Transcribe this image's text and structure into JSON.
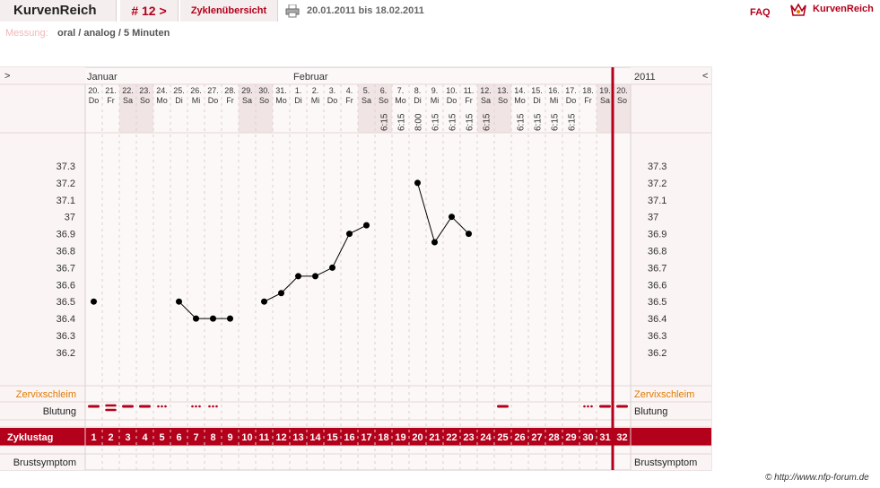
{
  "header": {
    "brand": "KurvenReich",
    "cycle_nav": "# 12 >",
    "overview_tab": "Zyklenübersicht",
    "date_range": "20.01.2011 bis 18.02.2011",
    "faq": "FAQ",
    "logo_text": "KurvenReich",
    "print_icon": "printer-icon",
    "logo_icon": "crown-logo-icon"
  },
  "measurement": {
    "label": "Messung:",
    "value": "oral / analog / 5 Minuten"
  },
  "footer": {
    "copyright": "© http://www.nfp-forum.de"
  },
  "colors": {
    "accent": "#b3001b",
    "weekend": "#f0e4e4",
    "zervix": "#e07b00",
    "line": "#000000"
  },
  "chart_data": {
    "type": "line",
    "nav_prev": ">",
    "nav_next": "<",
    "year": "2011",
    "months": [
      {
        "name": "Januar",
        "start_index": 0
      },
      {
        "name": "Februar",
        "start_index": 12
      }
    ],
    "days": [
      {
        "day": "20.",
        "wd": "Do",
        "time": "",
        "temp": 36.5,
        "cd": 1,
        "bleed": "dash",
        "weekend": false
      },
      {
        "day": "21.",
        "wd": "Fr",
        "time": "",
        "temp": null,
        "cd": 2,
        "bleed": "double",
        "weekend": false
      },
      {
        "day": "22.",
        "wd": "Sa",
        "time": "",
        "temp": null,
        "cd": 3,
        "bleed": "dash",
        "weekend": true
      },
      {
        "day": "23.",
        "wd": "So",
        "time": "",
        "temp": null,
        "cd": 4,
        "bleed": "dash",
        "weekend": true
      },
      {
        "day": "24.",
        "wd": "Mo",
        "time": "",
        "temp": null,
        "cd": 5,
        "bleed": "dots",
        "weekend": false
      },
      {
        "day": "25.",
        "wd": "Di",
        "time": "",
        "temp": 36.5,
        "cd": 6,
        "bleed": "",
        "weekend": false
      },
      {
        "day": "26.",
        "wd": "Mi",
        "time": "",
        "temp": 36.4,
        "cd": 7,
        "bleed": "dots",
        "weekend": false
      },
      {
        "day": "27.",
        "wd": "Do",
        "time": "",
        "temp": 36.4,
        "cd": 8,
        "bleed": "dots",
        "weekend": false
      },
      {
        "day": "28.",
        "wd": "Fr",
        "time": "",
        "temp": 36.4,
        "cd": 9,
        "bleed": "",
        "weekend": false
      },
      {
        "day": "29.",
        "wd": "Sa",
        "time": "",
        "temp": null,
        "cd": 10,
        "bleed": "",
        "weekend": true
      },
      {
        "day": "30.",
        "wd": "So",
        "time": "",
        "temp": 36.5,
        "cd": 11,
        "bleed": "",
        "weekend": true
      },
      {
        "day": "31.",
        "wd": "Mo",
        "time": "",
        "temp": 36.55,
        "cd": 12,
        "bleed": "",
        "weekend": false
      },
      {
        "day": "1.",
        "wd": "Di",
        "time": "",
        "temp": 36.65,
        "cd": 13,
        "bleed": "",
        "weekend": false
      },
      {
        "day": "2.",
        "wd": "Mi",
        "time": "",
        "temp": 36.65,
        "cd": 14,
        "bleed": "",
        "weekend": false
      },
      {
        "day": "3.",
        "wd": "Do",
        "time": "",
        "temp": 36.7,
        "cd": 15,
        "bleed": "",
        "weekend": false
      },
      {
        "day": "4.",
        "wd": "Fr",
        "time": "",
        "temp": 36.9,
        "cd": 16,
        "bleed": "",
        "weekend": false
      },
      {
        "day": "5.",
        "wd": "Sa",
        "time": "",
        "temp": 36.95,
        "cd": 17,
        "bleed": "",
        "weekend": true
      },
      {
        "day": "6.",
        "wd": "So",
        "time": "6:15",
        "temp": null,
        "cd": 18,
        "bleed": "",
        "weekend": true
      },
      {
        "day": "7.",
        "wd": "Mo",
        "time": "6:15",
        "temp": null,
        "cd": 19,
        "bleed": "",
        "weekend": false
      },
      {
        "day": "8.",
        "wd": "Di",
        "time": "8:00",
        "temp": 37.2,
        "cd": 20,
        "bleed": "",
        "weekend": false
      },
      {
        "day": "9.",
        "wd": "Mi",
        "time": "6:15",
        "temp": 36.85,
        "cd": 21,
        "bleed": "",
        "weekend": false
      },
      {
        "day": "10.",
        "wd": "Do",
        "time": "6:15",
        "temp": 37.0,
        "cd": 22,
        "bleed": "",
        "weekend": false
      },
      {
        "day": "11.",
        "wd": "Fr",
        "time": "6:15",
        "temp": 36.9,
        "cd": 23,
        "bleed": "",
        "weekend": false
      },
      {
        "day": "12.",
        "wd": "Sa",
        "time": "6:15",
        "temp": null,
        "cd": 24,
        "bleed": "",
        "weekend": true
      },
      {
        "day": "13.",
        "wd": "So",
        "time": "",
        "temp": null,
        "cd": 25,
        "bleed": "dash",
        "weekend": true
      },
      {
        "day": "14.",
        "wd": "Mo",
        "time": "6:15",
        "temp": null,
        "cd": 26,
        "bleed": "",
        "weekend": false
      },
      {
        "day": "15.",
        "wd": "Di",
        "time": "6:15",
        "temp": null,
        "cd": 27,
        "bleed": "",
        "weekend": false
      },
      {
        "day": "16.",
        "wd": "Mi",
        "time": "6:15",
        "temp": null,
        "cd": 28,
        "bleed": "",
        "weekend": false
      },
      {
        "day": "17.",
        "wd": "Do",
        "time": "6:15",
        "temp": null,
        "cd": 29,
        "bleed": "",
        "weekend": false
      },
      {
        "day": "18.",
        "wd": "Fr",
        "time": "",
        "temp": null,
        "cd": 30,
        "bleed": "dots",
        "weekend": false
      },
      {
        "day": "19.",
        "wd": "Sa",
        "time": "",
        "temp": null,
        "cd": 31,
        "bleed": "dash",
        "weekend": true
      },
      {
        "day": "20.",
        "wd": "So",
        "time": "",
        "temp": null,
        "cd": 32,
        "bleed": "dash",
        "weekend": true
      }
    ],
    "y_ticks": [
      "37.3",
      "37.2",
      "37.1",
      "37",
      "36.9",
      "36.8",
      "36.7",
      "36.6",
      "36.5",
      "36.4",
      "36.3",
      "36.2"
    ],
    "ylim": [
      36.2,
      37.3
    ],
    "today_index": 30,
    "row_labels": {
      "zervix": "Zervixschleim",
      "blutung": "Blutung",
      "zyklustag": "Zyklustag",
      "brust": "Brustsymptom"
    },
    "right_labels": {
      "zervix": "Zervixschleim",
      "blutung": "Blutung",
      "brust": "Brustsymptom"
    },
    "grid": true
  }
}
